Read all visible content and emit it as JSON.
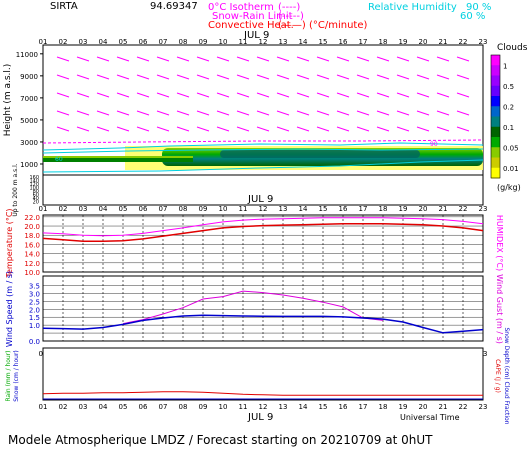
{
  "header": {
    "site": "SIRTA",
    "site_value": "94.69347",
    "legend_lines": [
      {
        "label": "0°C Isotherm",
        "symbol": "(----)",
        "color": "#ff00ff"
      },
      {
        "label": "Snow-Rain Limit",
        "symbol": "(-----)",
        "color": "#ff00ff"
      },
      {
        "label": "Convective Heat.",
        "symbol": "(——) (°C/minute)",
        "color": "#ff0000"
      }
    ],
    "humidity_legend": {
      "label": "Relative Humidity",
      "levels": [
        "90 %",
        "60 %"
      ],
      "color": "#00d0e0"
    }
  },
  "hours": [
    "01",
    "02",
    "03",
    "04",
    "05",
    "06",
    "07",
    "08",
    "09",
    "10",
    "11",
    "12",
    "13",
    "14",
    "15",
    "16",
    "17",
    "18",
    "19",
    "20",
    "21",
    "22",
    "23"
  ],
  "date_label": "JUL  9",
  "footer": {
    "universal_time": "Universal Time",
    "caption": "Modele Atmospherique LMDZ / Forecast starting on 20210709 at 0hUT"
  },
  "colorbar": {
    "title": "Clouds",
    "unit": "(g/kg)",
    "labels": [
      "1",
      "0.5",
      "0.2",
      "0.1",
      "0.05",
      "0.01"
    ],
    "colors": [
      "#ff00ff",
      "#cc00ff",
      "#9900ff",
      "#6600ff",
      "#0000ff",
      "#0066cc",
      "#008080",
      "#006400",
      "#00aa00",
      "#88cc00",
      "#cccc00",
      "#ffff00"
    ]
  },
  "chart_data": [
    {
      "panel": "clouds-wind",
      "type": "heatmap",
      "ylabel": "Height (m a.s.l.)",
      "yticks": [
        1000,
        3000,
        5000,
        7000,
        9000,
        11000
      ],
      "ylim": [
        0,
        11800
      ],
      "lower_ylabel": "Up to 200 m a.s.l.",
      "lower_yticks": [
        20,
        40,
        60,
        80,
        100,
        120,
        140,
        160
      ],
      "lower_ylim": [
        0,
        170
      ],
      "cloud_layer": {
        "base_height": 1300,
        "top_height": 2700,
        "level": "0.05-0.2"
      },
      "humidity_contour_90_height": 2400,
      "isotherm_0C_height": 3300,
      "contour_label": "60",
      "contour_label_90": "90"
    },
    {
      "panel": "temperature-humidex",
      "type": "line",
      "ylabel": "Temperature (°C)",
      "y2label": "HUMIDEX (°C)",
      "yticks": [
        10.0,
        12.0,
        14.0,
        16.0,
        18.0,
        20.0,
        22.0
      ],
      "ylim": [
        10,
        22.4
      ],
      "grid": true,
      "series": [
        {
          "name": "Temperature",
          "color": "#e00000",
          "values": [
            17.3,
            17.0,
            16.7,
            16.7,
            16.8,
            17.2,
            17.8,
            18.4,
            19.0,
            19.6,
            19.9,
            20.1,
            20.2,
            20.3,
            20.4,
            20.5,
            20.5,
            20.5,
            20.4,
            20.3,
            20.0,
            19.6,
            19.0
          ]
        },
        {
          "name": "HUMIDEX",
          "color": "#ff00ff",
          "values": [
            18.5,
            18.3,
            18.0,
            17.9,
            18.0,
            18.4,
            19.0,
            19.6,
            20.3,
            20.9,
            21.3,
            21.5,
            21.6,
            21.7,
            21.8,
            21.8,
            21.8,
            21.8,
            21.7,
            21.6,
            21.4,
            21.0,
            20.5
          ]
        }
      ]
    },
    {
      "panel": "wind",
      "type": "line",
      "ylabel": "Wind Speed (m / s)",
      "y2label": "Wind Gust (m / s)",
      "yticks": [
        0.0,
        0.5,
        1.0,
        1.5,
        2.0,
        2.5,
        3.0,
        3.5
      ],
      "yticklabels": [
        "0.0",
        "",
        "1.0",
        "1.5",
        "2.0",
        "2.5",
        "3.0",
        "3.5"
      ],
      "ylim": [
        0,
        4.1
      ],
      "grid": true,
      "series": [
        {
          "name": "Wind Speed",
          "color": "#0000cc",
          "values": [
            0.8,
            0.78,
            0.75,
            0.85,
            1.05,
            1.3,
            1.45,
            1.58,
            1.62,
            1.6,
            1.58,
            1.56,
            1.55,
            1.55,
            1.55,
            1.52,
            1.45,
            1.38,
            1.2,
            0.85,
            0.52,
            0.62,
            0.72
          ]
        },
        {
          "name": "Wind Gust",
          "color": "#dd00dd",
          "values": [
            null,
            null,
            null,
            null,
            1.1,
            1.35,
            1.7,
            2.1,
            2.65,
            2.8,
            3.15,
            3.05,
            2.9,
            2.7,
            2.45,
            2.15,
            1.45,
            1.3,
            null,
            null,
            null,
            null,
            null
          ]
        }
      ]
    },
    {
      "panel": "precipitation",
      "type": "line",
      "ylabel": "Rain (mm / hour)",
      "ylabel2": "Snow (cm / hour)",
      "y2label": "CAPE (J / g)",
      "y3label": "Snow Depth (cm) Cloud Fraction",
      "ylim": [
        0,
        1
      ],
      "series": [
        {
          "name": "CAPE",
          "color": "#e00000",
          "values": [
            0.12,
            0.13,
            0.13,
            0.14,
            0.14,
            0.15,
            0.16,
            0.16,
            0.15,
            0.13,
            0.11,
            0.1,
            0.09,
            0.09,
            0.09,
            0.09,
            0.09,
            0.09,
            0.09,
            0.09,
            0.09,
            0.09,
            0.09
          ]
        }
      ]
    }
  ]
}
